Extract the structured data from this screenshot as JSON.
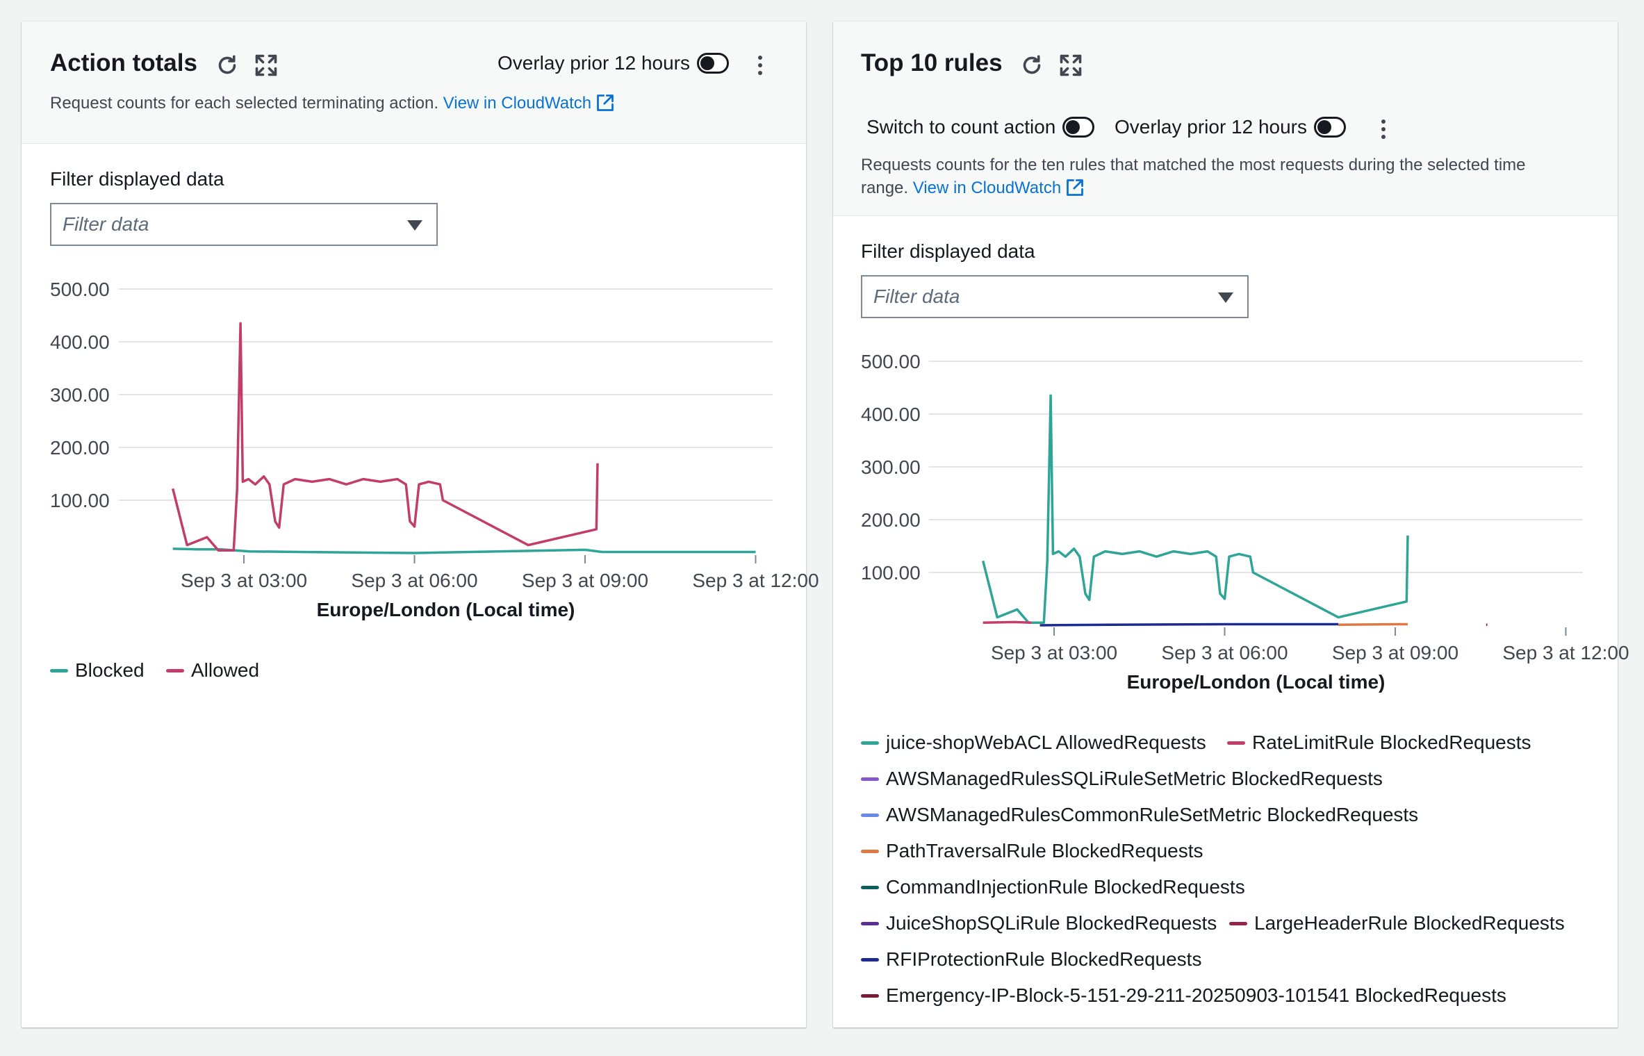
{
  "left_panel": {
    "title": "Action totals",
    "overlay_label": "Overlay prior 12 hours",
    "description": "Request counts for each selected terminating action.",
    "cloudwatch_link": "View in CloudWatch",
    "filter_label": "Filter displayed data",
    "filter_placeholder": "Filter data"
  },
  "right_panel": {
    "title": "Top 10 rules",
    "count_action_label": "Switch to count action",
    "overlay_label": "Overlay prior 12 hours",
    "description_line1": "Requests counts for the ten rules that matched the most requests during the selected time",
    "description_line2": "range.",
    "cloudwatch_link": "View in CloudWatch",
    "filter_label": "Filter displayed data",
    "filter_placeholder": "Filter data"
  },
  "chart_data": [
    {
      "type": "line",
      "title": "Action totals",
      "xlabel": "Europe/London (Local time)",
      "ylabel": "",
      "y_ticks": [
        "500.00",
        "400.00",
        "300.00",
        "200.00",
        "100.00"
      ],
      "x_ticks": [
        "Sep 3 at 03:00",
        "Sep 3 at 06:00",
        "Sep 3 at 09:00",
        "Sep 3 at 12:00"
      ],
      "x_range_hours": [
        0.8,
        12.3
      ],
      "ylim": [
        0,
        500
      ],
      "series": [
        {
          "name": "Blocked",
          "color": "#2ea597",
          "points": [
            [
              1.75,
              8
            ],
            [
              2.2,
              7
            ],
            [
              2.6,
              7
            ],
            [
              3.1,
              3
            ],
            [
              4,
              2
            ],
            [
              6,
              0
            ],
            [
              9,
              6
            ],
            [
              9.3,
              2
            ],
            [
              12,
              2
            ]
          ]
        },
        {
          "name": "Allowed",
          "color": "#c33d69",
          "points": [
            [
              1.75,
              122
            ],
            [
              2.0,
              15
            ],
            [
              2.35,
              30
            ],
            [
              2.55,
              5
            ],
            [
              2.82,
              5
            ],
            [
              2.88,
              120
            ],
            [
              2.94,
              435
            ],
            [
              2.98,
              135
            ],
            [
              3.08,
              140
            ],
            [
              3.2,
              130
            ],
            [
              3.35,
              145
            ],
            [
              3.45,
              130
            ],
            [
              3.55,
              60
            ],
            [
              3.62,
              48
            ],
            [
              3.7,
              130
            ],
            [
              3.9,
              140
            ],
            [
              4.2,
              135
            ],
            [
              4.5,
              140
            ],
            [
              4.8,
              130
            ],
            [
              5.1,
              140
            ],
            [
              5.4,
              135
            ],
            [
              5.7,
              140
            ],
            [
              5.85,
              130
            ],
            [
              5.92,
              60
            ],
            [
              6.0,
              50
            ],
            [
              6.08,
              130
            ],
            [
              6.25,
              135
            ],
            [
              6.45,
              130
            ],
            [
              6.5,
              100
            ],
            [
              8.0,
              15
            ],
            [
              9.2,
              45
            ],
            [
              9.22,
              170
            ]
          ]
        }
      ]
    },
    {
      "type": "line",
      "title": "Top 10 rules",
      "xlabel": "Europe/London (Local time)",
      "ylabel": "",
      "y_ticks": [
        "500.00",
        "400.00",
        "300.00",
        "200.00",
        "100.00"
      ],
      "x_ticks": [
        "Sep 3 at 03:00",
        "Sep 3 at 06:00",
        "Sep 3 at 09:00",
        "Sep 3 at 12:00"
      ],
      "x_range_hours": [
        0.8,
        12.3
      ],
      "ylim": [
        0,
        500
      ],
      "series": [
        {
          "name": "juice-shopWebACL AllowedRequests",
          "color": "#2ea597",
          "points": [
            [
              1.75,
              122
            ],
            [
              2.0,
              15
            ],
            [
              2.35,
              30
            ],
            [
              2.55,
              5
            ],
            [
              2.82,
              5
            ],
            [
              2.88,
              120
            ],
            [
              2.94,
              435
            ],
            [
              2.98,
              135
            ],
            [
              3.08,
              140
            ],
            [
              3.2,
              130
            ],
            [
              3.35,
              145
            ],
            [
              3.45,
              130
            ],
            [
              3.55,
              60
            ],
            [
              3.62,
              48
            ],
            [
              3.7,
              130
            ],
            [
              3.9,
              140
            ],
            [
              4.2,
              135
            ],
            [
              4.5,
              140
            ],
            [
              4.8,
              130
            ],
            [
              5.1,
              140
            ],
            [
              5.4,
              135
            ],
            [
              5.7,
              140
            ],
            [
              5.85,
              130
            ],
            [
              5.92,
              60
            ],
            [
              6.0,
              50
            ],
            [
              6.08,
              130
            ],
            [
              6.25,
              135
            ],
            [
              6.45,
              130
            ],
            [
              6.5,
              100
            ],
            [
              8.0,
              15
            ],
            [
              9.2,
              45
            ],
            [
              9.22,
              170
            ]
          ]
        },
        {
          "name": "RateLimitRule BlockedRequests",
          "color": "#c33d69",
          "points": [
            [
              1.75,
              5
            ],
            [
              2.3,
              6
            ],
            [
              2.6,
              5
            ]
          ]
        },
        {
          "name": "AWSManagedRulesSQLiRuleSetMetric BlockedRequests",
          "color": "#8456ce",
          "points": []
        },
        {
          "name": "AWSManagedRulesCommonRuleSetMetric BlockedRequests",
          "color": "#688ae8",
          "points": []
        },
        {
          "name": "PathTraversalRule BlockedRequests",
          "color": "#e07941",
          "points": [
            [
              8.0,
              1
            ],
            [
              9.0,
              2
            ],
            [
              9.22,
              2
            ]
          ]
        },
        {
          "name": "CommandInjectionRule BlockedRequests",
          "color": "#0f5e5e",
          "points": []
        },
        {
          "name": "JuiceShopSQLiRule BlockedRequests",
          "color": "#5a2f94",
          "points": []
        },
        {
          "name": "LargeHeaderRule BlockedRequests",
          "color": "#962249",
          "points": []
        },
        {
          "name": "RFIProtectionRule BlockedRequests",
          "color": "#1c2b8f",
          "points": [
            [
              2.75,
              0
            ],
            [
              4,
              1
            ],
            [
              6,
              2
            ],
            [
              8,
              2
            ]
          ]
        },
        {
          "name": "Emergency-IP-Block-5-151-29-211-20250903-101541 BlockedRequests",
          "color": "#7a1b34",
          "points": [
            [
              10.6,
              1
            ],
            [
              10.62,
              1
            ]
          ]
        }
      ]
    }
  ]
}
